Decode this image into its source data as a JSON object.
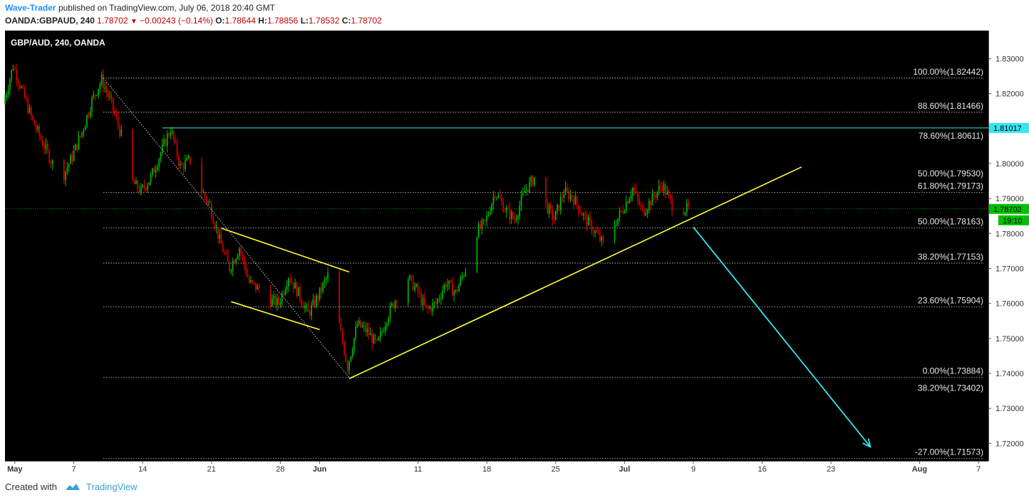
{
  "header": {
    "author": "Wave-Trader",
    "published": "published on TradingView.com, July 06, 2018 20:40 GMT",
    "symbol": "OANDA:GBPAUD, 240",
    "last": "1.78702",
    "change": "−0.00243 (−0.14%)",
    "open_label": "O:",
    "open": "1.78644",
    "high_label": "H:",
    "high": "1.78856",
    "low_label": "L:",
    "low": "1.78532",
    "close_label": "C:",
    "close": "1.78702"
  },
  "footer": {
    "created_with": "Created with",
    "brand": "TradingView"
  },
  "colors": {
    "background": "#000000",
    "up_candle": "#00c000",
    "down_candle": "#e00000",
    "trendline": "#ffff33",
    "projection": "#33e6f0",
    "price_line": "#00c000",
    "fib_line": "#cfcfcf"
  },
  "chart_data": {
    "type": "candlestick",
    "title": "GBP/AUD, 240, OANDA",
    "y_axis": {
      "range": [
        1.715,
        1.838
      ],
      "ticks": [
        1.83,
        1.82,
        1.81,
        1.8,
        1.79,
        1.78,
        1.77,
        1.76,
        1.75,
        1.74,
        1.73,
        1.72
      ],
      "tick_labels": [
        "1.83000",
        "1.82000",
        "1.81000",
        "1.80000",
        "1.79000",
        "1.78000",
        "1.77000",
        "1.76000",
        "1.75000",
        "1.74000",
        "1.73000",
        "1.72000"
      ]
    },
    "x_axis": {
      "range": [
        "2018-04-30",
        "2018-08-08"
      ],
      "ticks": [
        {
          "date": "2018-05-01",
          "label": "May"
        },
        {
          "date": "2018-05-07",
          "label": "7"
        },
        {
          "date": "2018-05-14",
          "label": "14"
        },
        {
          "date": "2018-05-21",
          "label": "21"
        },
        {
          "date": "2018-05-28",
          "label": "28"
        },
        {
          "date": "2018-06-01",
          "label": "Jun"
        },
        {
          "date": "2018-06-11",
          "label": "11"
        },
        {
          "date": "2018-06-18",
          "label": "18"
        },
        {
          "date": "2018-06-25",
          "label": "25"
        },
        {
          "date": "2018-07-02",
          "label": "Jul"
        },
        {
          "date": "2018-07-09",
          "label": "9"
        },
        {
          "date": "2018-07-16",
          "label": "16"
        },
        {
          "date": "2018-07-23",
          "label": "23"
        },
        {
          "date": "2018-08-01",
          "label": "Aug"
        },
        {
          "date": "2018-08-07",
          "label": "7"
        }
      ]
    },
    "price_path": [
      [
        "2018-04-30",
        1.817
      ],
      [
        "2018-05-01",
        1.828
      ],
      [
        "2018-05-02",
        1.82
      ],
      [
        "2018-05-03",
        1.812
      ],
      [
        "2018-05-04",
        1.806
      ],
      [
        "2018-05-05",
        1.8
      ],
      [
        "2018-05-06",
        1.796
      ],
      [
        "2018-05-07",
        1.802
      ],
      [
        "2018-05-08",
        1.809
      ],
      [
        "2018-05-09",
        1.818
      ],
      [
        "2018-05-10",
        1.824
      ],
      [
        "2018-05-11",
        1.817
      ],
      [
        "2018-05-12",
        1.808
      ],
      [
        "2018-05-13",
        1.795
      ],
      [
        "2018-05-14",
        1.792
      ],
      [
        "2018-05-15",
        1.796
      ],
      [
        "2018-05-16",
        1.803
      ],
      [
        "2018-05-17",
        1.81
      ],
      [
        "2018-05-18",
        1.799
      ],
      [
        "2018-05-19",
        1.801
      ],
      [
        "2018-05-20",
        1.793
      ],
      [
        "2018-05-21",
        1.788
      ],
      [
        "2018-05-22",
        1.778
      ],
      [
        "2018-05-23",
        1.77
      ],
      [
        "2018-05-24",
        1.776
      ],
      [
        "2018-05-25",
        1.766
      ],
      [
        "2018-05-26",
        1.764
      ],
      [
        "2018-05-27",
        1.761
      ],
      [
        "2018-05-28",
        1.76
      ],
      [
        "2018-05-29",
        1.768
      ],
      [
        "2018-05-30",
        1.763
      ],
      [
        "2018-05-31",
        1.757
      ],
      [
        "2018-06-01",
        1.762
      ],
      [
        "2018-06-02",
        1.768
      ],
      [
        "2018-06-03",
        1.756
      ],
      [
        "2018-06-04",
        1.742
      ],
      [
        "2018-06-05",
        1.754
      ],
      [
        "2018-06-06",
        1.752
      ],
      [
        "2018-06-07",
        1.748
      ],
      [
        "2018-06-08",
        1.756
      ],
      [
        "2018-06-09",
        1.762
      ],
      [
        "2018-06-10",
        1.768
      ],
      [
        "2018-06-11",
        1.764
      ],
      [
        "2018-06-12",
        1.758
      ],
      [
        "2018-06-13",
        1.76
      ],
      [
        "2018-06-14",
        1.766
      ],
      [
        "2018-06-15",
        1.763
      ],
      [
        "2018-06-16",
        1.77
      ],
      [
        "2018-06-17",
        1.78
      ],
      [
        "2018-06-18",
        1.783
      ],
      [
        "2018-06-19",
        1.792
      ],
      [
        "2018-06-20",
        1.787
      ],
      [
        "2018-06-21",
        1.784
      ],
      [
        "2018-06-22",
        1.792
      ],
      [
        "2018-06-23",
        1.796
      ],
      [
        "2018-06-24",
        1.789
      ],
      [
        "2018-06-25",
        1.784
      ],
      [
        "2018-06-26",
        1.792
      ],
      [
        "2018-06-27",
        1.79
      ],
      [
        "2018-06-28",
        1.785
      ],
      [
        "2018-06-29",
        1.781
      ],
      [
        "2018-06-30",
        1.777
      ],
      [
        "2018-07-01",
        1.782
      ],
      [
        "2018-07-02",
        1.787
      ],
      [
        "2018-07-03",
        1.793
      ],
      [
        "2018-07-04",
        1.786
      ],
      [
        "2018-07-05",
        1.79
      ],
      [
        "2018-07-06",
        1.794
      ],
      [
        "2018-07-07",
        1.788
      ],
      [
        "2018-07-08",
        1.787
      ]
    ],
    "fibonacci_levels": [
      {
        "label": "100.00%(1.82442)",
        "price": 1.82442,
        "line": true
      },
      {
        "label": "88.60%(1.81466)",
        "price": 1.81466,
        "line": true
      },
      {
        "label": "78.60%(1.80611)",
        "price": 1.80611,
        "line": false
      },
      {
        "label": "50.00%(1.79530)",
        "price": 1.7953,
        "line": false
      },
      {
        "label": "61.80%(1.79173)",
        "price": 1.79173,
        "line": true
      },
      {
        "label": "50.00%(1.78163)",
        "price": 1.78163,
        "line": true
      },
      {
        "label": "38.20%(1.77153)",
        "price": 1.77153,
        "line": true
      },
      {
        "label": "23.60%(1.75904)",
        "price": 1.75904,
        "line": true
      },
      {
        "label": "0.00%(1.73884)",
        "price": 1.73884,
        "line": true
      },
      {
        "label": "38.20%(1.73402)",
        "price": 1.73402,
        "line": false
      },
      {
        "label": "-27.00%(1.71573)",
        "price": 1.71573,
        "line": true
      }
    ],
    "horizontal_level": {
      "price": 1.81017,
      "label": "1.81017"
    },
    "current_price": {
      "price": 1.78702,
      "label": "1.78702",
      "countdown": "19:10"
    },
    "trendlines": [
      {
        "name": "fib-diagonal",
        "style": "dotted",
        "from": [
          "2018-05-10",
          1.82442
        ],
        "to": [
          "2018-06-04",
          1.73884
        ]
      },
      {
        "name": "channel-upper",
        "style": "solid",
        "from": [
          "2018-05-22",
          1.7815
        ],
        "to": [
          "2018-06-04",
          1.769
        ]
      },
      {
        "name": "channel-lower",
        "style": "solid",
        "from": [
          "2018-05-23",
          1.7605
        ],
        "to": [
          "2018-06-01",
          1.7525
        ]
      },
      {
        "name": "support-line",
        "style": "solid",
        "from": [
          "2018-06-04",
          1.7385
        ],
        "to": [
          "2018-07-20",
          1.799
        ]
      }
    ],
    "projection_arrow": {
      "from": [
        "2018-07-09",
        1.7818
      ],
      "to": [
        "2018-07-27",
        1.719
      ]
    }
  }
}
